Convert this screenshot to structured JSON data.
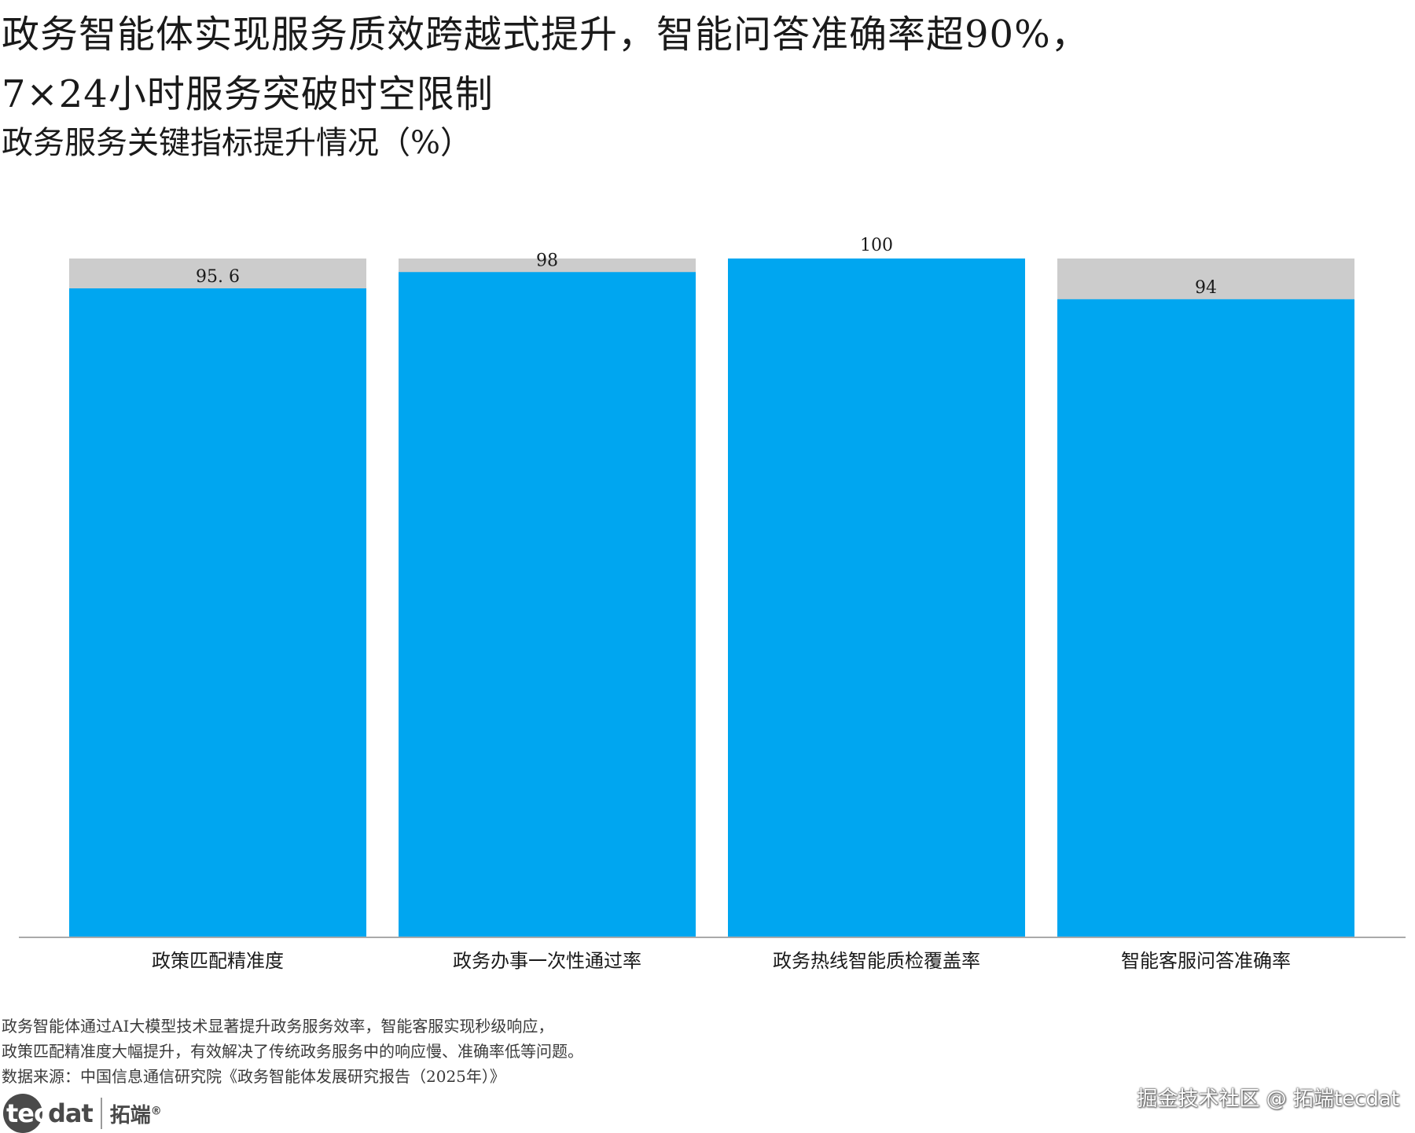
{
  "header": {
    "title": "政务智能体实现服务质效跨越式提升，智能问答准确率超90%，\n7×24小时服务突破时空限制",
    "subtitle": "政务服务关键指标提升情况（%）"
  },
  "chart_data": {
    "type": "bar",
    "categories": [
      "政策匹配精准度",
      "政务办事一次性通过率",
      "政务热线智能质检覆盖率",
      "智能客服问答准确率"
    ],
    "values": [
      95.6,
      98,
      100,
      94
    ],
    "value_labels": [
      "95. 6",
      "98",
      "100",
      "94"
    ],
    "ylim": [
      0,
      100
    ],
    "background_max": 100,
    "bar_color": "#00a6f0",
    "track_color": "#cccccc",
    "grid": false,
    "legend": "none"
  },
  "notes": {
    "line1": "政务智能体通过AI大模型技术显著提升政务服务效率，智能客服实现秒级响应，",
    "line2": "政策匹配精准度大幅提升，有效解决了传统政务服务中的响应慢、准确率低等问题。",
    "source": "数据来源：中国信息通信研究院《政务智能体发展研究报告（2025年）》"
  },
  "footer": {
    "logo_prefix": "tec",
    "logo_suffix": "dat",
    "logo_cn": "拓端",
    "logo_mark": "®",
    "watermark": "掘金技术社区 @ 拓端tecdat"
  }
}
